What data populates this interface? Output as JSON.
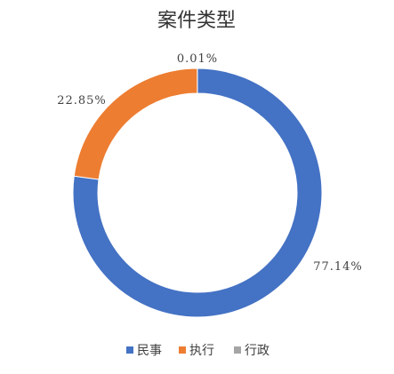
{
  "chart_data": {
    "type": "pie",
    "style": "donut",
    "title": "案件类型",
    "categories": [
      "民事",
      "执行",
      "行政"
    ],
    "values": [
      77.14,
      22.85,
      0.01
    ],
    "labels": [
      "77.14%",
      "22.85%",
      "0.01%"
    ],
    "colors": [
      "#4472C4",
      "#ED7D31",
      "#A5A5A5"
    ],
    "legend_position": "bottom"
  }
}
